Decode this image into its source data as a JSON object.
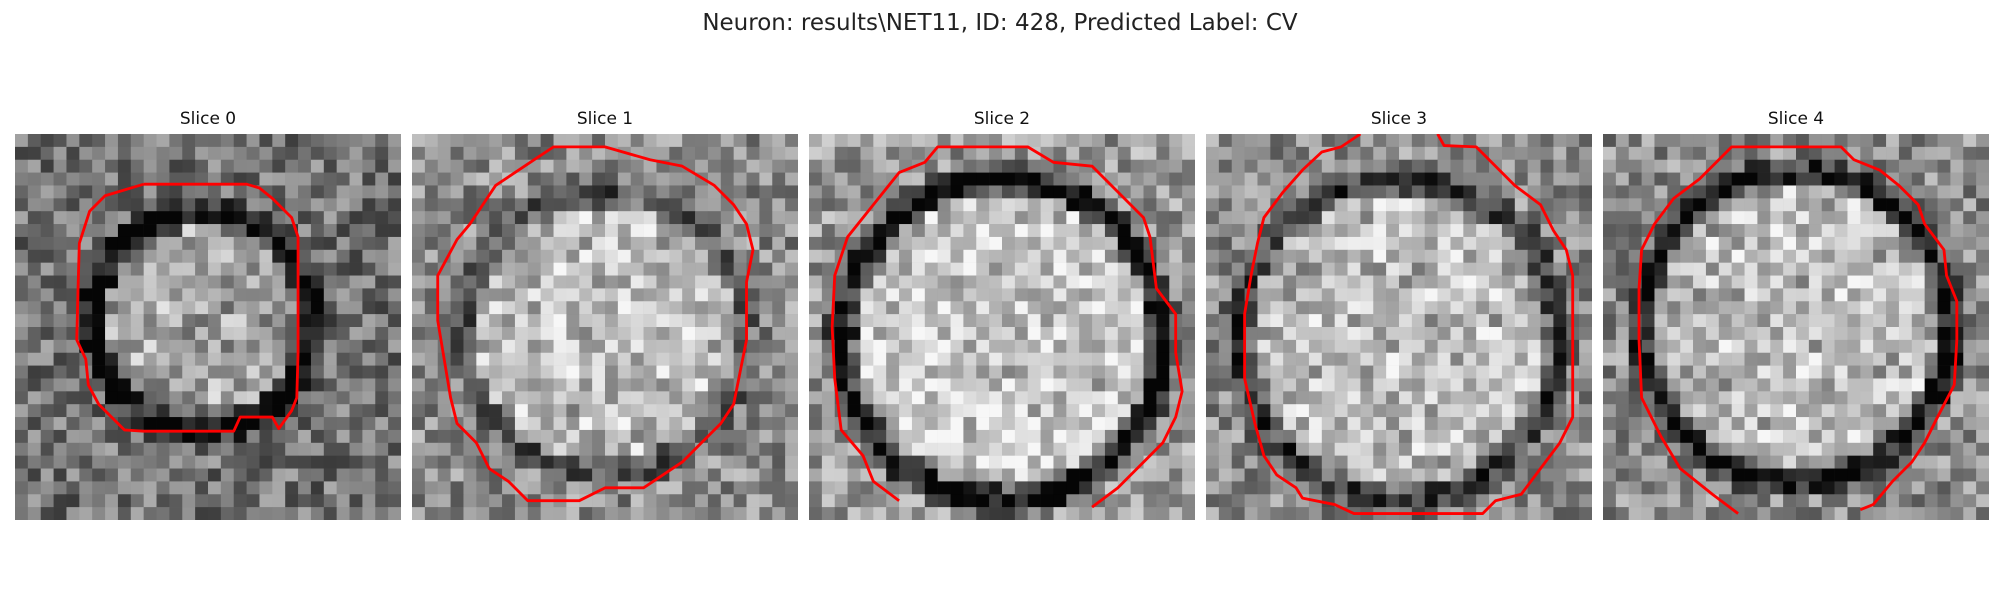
{
  "figure": {
    "title": "Neuron: results\\NET11, ID: 428, Predicted Label: CV",
    "contour_color": "#ff0000",
    "colormap": "grayscale"
  },
  "slices": [
    {
      "label": "Slice 0"
    },
    {
      "label": "Slice 1"
    },
    {
      "label": "Slice 2"
    },
    {
      "label": "Slice 3"
    },
    {
      "label": "Slice 4"
    }
  ]
}
